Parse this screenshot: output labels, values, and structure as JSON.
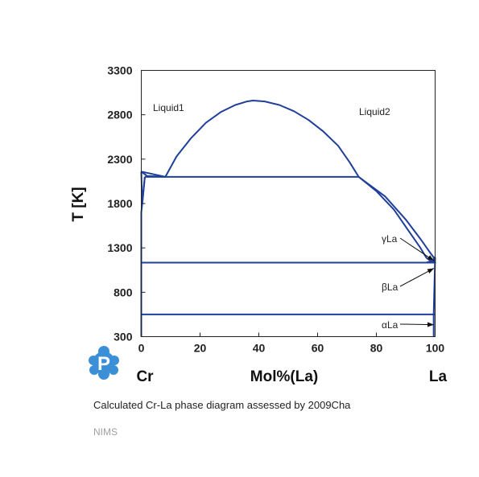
{
  "caption": "Calculated Cr-La phase diagram assessed by 2009Cha",
  "org": "NIMS",
  "colors": {
    "curve": "#1f3f99",
    "frame": "#222222",
    "logo": "#3a8fd6"
  },
  "logo": {
    "icon": "p-logo-icon",
    "letter": "P"
  },
  "chart_data": {
    "type": "line",
    "xlabel": "Mol%(La)",
    "ylabel": "T [K]",
    "xlim": [
      0,
      100
    ],
    "ylim": [
      300,
      3300
    ],
    "xticks": [
      0,
      20,
      40,
      60,
      80,
      100
    ],
    "yticks": [
      300,
      800,
      1300,
      1800,
      2300,
      2800,
      3300
    ],
    "xtick_labels": [
      "0",
      "20",
      "40",
      "60",
      "80",
      "100"
    ],
    "ytick_labels": [
      "300",
      "800",
      "1300",
      "1800",
      "2300",
      "2800",
      "3300"
    ],
    "element_left": "Cr",
    "element_right": "La",
    "region_labels": [
      {
        "text": "Liquid1",
        "x": 4,
        "y": 2860
      },
      {
        "text": "Liquid2",
        "x": 74,
        "y": 2830
      }
    ],
    "phase_labels": [
      {
        "text": "γLa",
        "x": 82,
        "y": 1400,
        "target": [
          99.6,
          1155
        ]
      },
      {
        "text": "βLa",
        "x": 82,
        "y": 900,
        "target": [
          99.6,
          1070
        ]
      },
      {
        "text": "αLa",
        "x": 82,
        "y": 420,
        "target": [
          99.6,
          435
        ]
      }
    ],
    "series": [
      {
        "values": [
          [
            8.2,
            2100
          ],
          [
            12,
            2330
          ],
          [
            17,
            2540
          ],
          [
            22,
            2710
          ],
          [
            27,
            2830
          ],
          [
            32,
            2910
          ],
          [
            36,
            2950
          ],
          [
            38,
            2960
          ],
          [
            42,
            2950
          ],
          [
            47,
            2910
          ],
          [
            52,
            2840
          ],
          [
            57,
            2740
          ],
          [
            62,
            2610
          ],
          [
            67,
            2450
          ],
          [
            71,
            2260
          ],
          [
            74,
            2100
          ]
        ]
      },
      {
        "values": [
          [
            0,
            2160
          ],
          [
            2,
            2110
          ],
          [
            8.2,
            2100
          ]
        ]
      },
      {
        "values": [
          [
            0,
            2160
          ],
          [
            8.2,
            2100
          ]
        ]
      },
      {
        "values": [
          [
            0,
            2160
          ],
          [
            0.3,
            1800
          ],
          [
            1.2,
            2100
          ]
        ]
      },
      {
        "values": [
          [
            0,
            300
          ],
          [
            0,
            1120
          ],
          [
            0,
            1700
          ],
          [
            0.4,
            1820
          ],
          [
            1.2,
            2100
          ]
        ]
      },
      {
        "values": [
          [
            1.2,
            2100
          ],
          [
            74,
            2100
          ]
        ]
      },
      {
        "values": [
          [
            74,
            2100
          ],
          [
            80,
            1940
          ],
          [
            86,
            1730
          ],
          [
            91,
            1490
          ],
          [
            95,
            1300
          ],
          [
            97,
            1190
          ],
          [
            98.6,
            1150
          ]
        ]
      },
      {
        "values": [
          [
            74,
            2100
          ],
          [
            83,
            1880
          ],
          [
            90,
            1620
          ],
          [
            95,
            1400
          ],
          [
            98,
            1260
          ],
          [
            99.5,
            1193
          ],
          [
            100,
            1193
          ]
        ]
      },
      {
        "values": [
          [
            0,
            1134
          ],
          [
            100,
            1134
          ]
        ]
      },
      {
        "values": [
          [
            97,
            1134
          ],
          [
            98.6,
            1150
          ],
          [
            100,
            1150
          ]
        ]
      },
      {
        "values": [
          [
            99.5,
            1193
          ],
          [
            99.5,
            1134
          ],
          [
            100,
            1134
          ],
          [
            99.5,
            1150
          ]
        ]
      },
      {
        "values": [
          [
            0,
            550
          ],
          [
            100,
            550
          ]
        ]
      },
      {
        "values": [
          [
            100,
            1193
          ],
          [
            99.5,
            550
          ],
          [
            99.5,
            300
          ]
        ]
      }
    ]
  }
}
